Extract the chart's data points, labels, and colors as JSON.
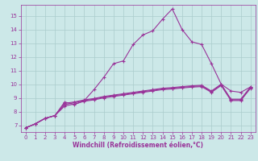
{
  "xlabel": "Windchill (Refroidissement éolien,°C)",
  "background_color": "#cce8e8",
  "grid_color": "#aacccc",
  "line_color": "#993399",
  "xlim": [
    -0.5,
    23.5
  ],
  "ylim": [
    6.5,
    15.8
  ],
  "yticks": [
    7,
    8,
    9,
    10,
    11,
    12,
    13,
    14,
    15
  ],
  "xticks": [
    0,
    1,
    2,
    3,
    4,
    5,
    6,
    7,
    8,
    9,
    10,
    11,
    12,
    13,
    14,
    15,
    16,
    17,
    18,
    19,
    20,
    21,
    22,
    23
  ],
  "peaked_x": [
    0,
    1,
    2,
    3,
    4,
    5,
    6,
    7,
    8,
    9,
    10,
    11,
    12,
    13,
    14,
    15,
    16,
    17,
    18,
    19,
    20,
    21,
    22,
    23
  ],
  "peaked_y": [
    6.8,
    7.1,
    7.5,
    7.7,
    8.7,
    8.5,
    8.8,
    9.6,
    10.5,
    11.5,
    11.7,
    12.9,
    13.6,
    13.9,
    14.75,
    15.5,
    14.0,
    13.1,
    12.9,
    11.5,
    10.0,
    9.5,
    9.4,
    9.8
  ],
  "flat1_x": [
    0,
    1,
    2,
    3,
    4,
    5,
    6,
    7,
    8,
    9,
    10,
    11,
    12,
    13,
    14,
    15,
    16,
    17,
    18,
    19,
    20,
    21,
    22,
    23
  ],
  "flat1_y": [
    6.8,
    7.1,
    7.5,
    7.7,
    8.6,
    8.7,
    8.85,
    8.95,
    9.1,
    9.2,
    9.3,
    9.4,
    9.5,
    9.6,
    9.7,
    9.75,
    9.82,
    9.88,
    9.92,
    9.5,
    10.0,
    8.9,
    8.9,
    9.8
  ],
  "flat2_x": [
    0,
    1,
    2,
    3,
    4,
    5,
    6,
    7,
    8,
    9,
    10,
    11,
    12,
    13,
    14,
    15,
    16,
    17,
    18,
    19,
    20,
    21,
    22,
    23
  ],
  "flat2_y": [
    6.8,
    7.1,
    7.5,
    7.7,
    8.5,
    8.65,
    8.8,
    8.9,
    9.05,
    9.15,
    9.25,
    9.35,
    9.45,
    9.55,
    9.65,
    9.7,
    9.77,
    9.83,
    9.87,
    9.45,
    9.95,
    8.85,
    8.85,
    9.75
  ],
  "flat3_x": [
    0,
    1,
    2,
    3,
    4,
    5,
    6,
    7,
    8,
    9,
    10,
    11,
    12,
    13,
    14,
    15,
    16,
    17,
    18,
    19,
    20,
    21,
    22,
    23
  ],
  "flat3_y": [
    6.8,
    7.1,
    7.5,
    7.7,
    8.4,
    8.55,
    8.75,
    8.85,
    9.0,
    9.1,
    9.2,
    9.3,
    9.4,
    9.5,
    9.6,
    9.65,
    9.72,
    9.78,
    9.82,
    9.4,
    9.9,
    8.8,
    8.8,
    9.7
  ],
  "font_color": "#993399",
  "tick_fontsize": 5,
  "label_fontsize": 5.5,
  "marker_size": 2.5,
  "line_width": 0.8
}
